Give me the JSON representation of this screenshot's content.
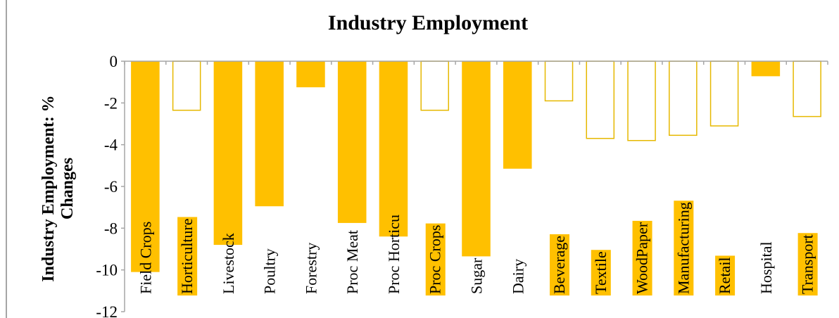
{
  "chart_data": {
    "type": "bar",
    "title": "Industry Employment",
    "ylabel_lines": [
      "Industry Employment: %",
      "Changes"
    ],
    "ylim": [
      -12,
      0
    ],
    "yticks": [
      0,
      -2,
      -4,
      -6,
      -8,
      -10,
      -12
    ],
    "ytick_labels": [
      "0",
      "-2",
      "-4",
      "-6",
      "-8",
      "-10",
      "-12"
    ],
    "categories": [
      "Field Crops",
      "Horticulture",
      "Livestock",
      "Poultry",
      "Forestry",
      "Proc Meat",
      "Proc Horticu",
      "Proc Crops",
      "Sugar",
      "Dairy",
      "Beverage",
      "Textile",
      "WoodPaper",
      "Manufacturing",
      "Retail",
      "Hospital",
      "Transport"
    ],
    "values": [
      -10.1,
      -2.35,
      -8.8,
      -6.95,
      -1.25,
      -7.75,
      -8.4,
      -2.35,
      -9.35,
      -5.15,
      -1.9,
      -3.7,
      -3.8,
      -3.55,
      -3.1,
      -0.72,
      -2.65
    ],
    "filled": [
      true,
      false,
      true,
      true,
      true,
      true,
      true,
      false,
      true,
      true,
      false,
      false,
      false,
      false,
      false,
      true,
      false
    ],
    "label_highlight": [
      false,
      true,
      false,
      false,
      false,
      false,
      false,
      true,
      false,
      false,
      true,
      true,
      true,
      true,
      true,
      false,
      true
    ],
    "bar_color": "#ffc000",
    "outline_color": "#e6b800",
    "axis_color": "#a6a6a6",
    "grid": false,
    "legend": "none"
  }
}
